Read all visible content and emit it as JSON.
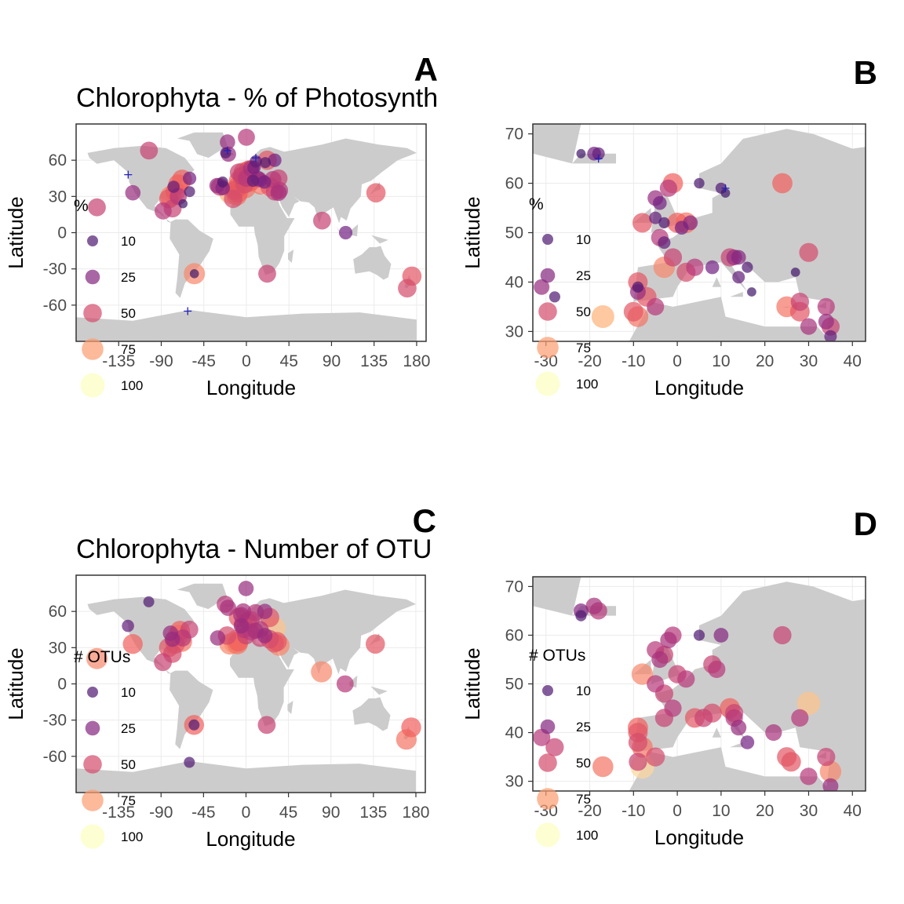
{
  "colors": {
    "land": "#cccccc",
    "panel_bg": "#ffffff",
    "grid": "#ebebeb",
    "border": "#333333",
    "site_marker": "#2020c0",
    "scale": [
      "#2c115f",
      "#721f81",
      "#b73779",
      "#f1605d",
      "#feb078",
      "#fcfdbf"
    ]
  },
  "legend_values": [
    "10",
    "25",
    "50",
    "75",
    "100"
  ],
  "chart_data": [
    {
      "panel": "A",
      "type": "scatter",
      "map": "world",
      "title": "Chlorophyta - % of Photosynth",
      "xlabel": "Longitude",
      "ylabel": "Latitude",
      "xlim": [
        -180,
        190
      ],
      "ylim": [
        -90,
        90
      ],
      "xticks": [
        "-135",
        "-90",
        "-45",
        "0",
        "45",
        "90",
        "135",
        "180"
      ],
      "yticks": [
        "60",
        "30",
        "0",
        "-30",
        "-60"
      ],
      "legend_title": "%",
      "points": [
        [
          -103,
          68,
          45
        ],
        [
          -88,
          18,
          40
        ],
        [
          -78,
          20,
          45
        ],
        [
          -68,
          44,
          60
        ],
        [
          -72,
          40,
          60
        ],
        [
          -75,
          34,
          60
        ],
        [
          -80,
          30,
          70
        ],
        [
          -72,
          30,
          40
        ],
        [
          -60,
          45,
          20
        ],
        [
          -77,
          38,
          15
        ],
        [
          -82,
          28,
          55
        ],
        [
          -67,
          24,
          5
        ],
        [
          -60,
          34,
          10
        ],
        [
          -158,
          21,
          45
        ],
        [
          -120,
          33,
          30
        ],
        [
          -55,
          -34,
          70
        ],
        [
          -55,
          -34,
          5
        ],
        [
          -22,
          66,
          10
        ],
        [
          -19,
          65,
          30
        ],
        [
          0,
          79,
          40
        ],
        [
          -20,
          75,
          30
        ],
        [
          10,
          59,
          15
        ],
        [
          22,
          60,
          55
        ],
        [
          2,
          51,
          60
        ],
        [
          -3,
          50,
          60
        ],
        [
          -8,
          43,
          60
        ],
        [
          -3,
          43,
          70
        ],
        [
          -9,
          38,
          60
        ],
        [
          -1,
          37,
          65
        ],
        [
          -9,
          33,
          60
        ],
        [
          -10,
          31,
          65
        ],
        [
          -17,
          33,
          80
        ],
        [
          -14,
          28,
          50
        ],
        [
          -12,
          35,
          55
        ],
        [
          -28,
          38,
          45
        ],
        [
          -31,
          39,
          30
        ],
        [
          -25,
          37,
          25
        ],
        [
          5,
          43,
          65
        ],
        [
          3,
          42,
          60
        ],
        [
          15,
          40,
          65
        ],
        [
          12,
          45,
          30
        ],
        [
          14,
          44,
          30
        ],
        [
          19,
          42,
          20
        ],
        [
          25,
          38,
          55
        ],
        [
          30,
          34,
          45
        ],
        [
          34,
          33,
          35
        ],
        [
          35,
          35,
          40
        ],
        [
          28,
          44,
          40
        ],
        [
          34,
          45,
          45
        ],
        [
          20,
          58,
          10
        ],
        [
          30,
          60,
          20
        ],
        [
          3,
          52,
          55
        ],
        [
          5,
          53,
          35
        ],
        [
          8,
          54,
          20
        ],
        [
          -5,
          47,
          45
        ],
        [
          -2,
          40,
          50
        ],
        [
          0,
          45,
          40
        ],
        [
          -8,
          50,
          45
        ],
        [
          7,
          43,
          15
        ],
        [
          -25,
          42,
          10
        ],
        [
          22,
          -34,
          45
        ],
        [
          80,
          10,
          45
        ],
        [
          105,
          0,
          20
        ],
        [
          137,
          33,
          55
        ],
        [
          175,
          -36,
          55
        ],
        [
          170,
          -46,
          50
        ]
      ],
      "crosses": [
        [
          -125,
          48
        ],
        [
          -62,
          -65
        ],
        [
          -20,
          68
        ],
        [
          10,
          62
        ]
      ]
    },
    {
      "panel": "B",
      "type": "scatter",
      "map": "europe",
      "title": "",
      "xlabel": "Longitude",
      "ylabel": "Latitude",
      "xlim": [
        -33,
        43
      ],
      "ylim": [
        28,
        72
      ],
      "xticks": [
        "-30",
        "-20",
        "-10",
        "0",
        "10",
        "20",
        "30",
        "40"
      ],
      "yticks": [
        "70",
        "60",
        "50",
        "40",
        "30"
      ],
      "legend_title": "%",
      "points": [
        [
          -22,
          66,
          5
        ],
        [
          -19,
          66,
          20
        ],
        [
          -18,
          66,
          15
        ],
        [
          -1,
          60,
          60
        ],
        [
          -2,
          59,
          40
        ],
        [
          -5,
          57,
          30
        ],
        [
          5,
          60,
          8
        ],
        [
          -4,
          56,
          20
        ],
        [
          -5,
          53,
          15
        ],
        [
          -3,
          52,
          10
        ],
        [
          -8,
          52,
          55
        ],
        [
          0,
          52,
          60
        ],
        [
          2,
          52,
          65
        ],
        [
          3,
          52,
          25
        ],
        [
          1,
          51,
          20
        ],
        [
          -4,
          49,
          40
        ],
        [
          -3,
          48,
          15
        ],
        [
          10,
          59,
          10
        ],
        [
          11,
          58,
          5
        ],
        [
          24,
          60,
          60
        ],
        [
          -1,
          45,
          45
        ],
        [
          -3,
          43,
          70
        ],
        [
          -9,
          40,
          55
        ],
        [
          -9,
          39,
          10
        ],
        [
          -9,
          38,
          30
        ],
        [
          -7,
          37,
          55
        ],
        [
          -10,
          34,
          55
        ],
        [
          -9,
          33,
          65
        ],
        [
          -17,
          33,
          80
        ],
        [
          -5,
          35,
          40
        ],
        [
          2,
          42,
          50
        ],
        [
          4,
          43,
          40
        ],
        [
          8,
          43,
          20
        ],
        [
          12,
          45,
          45
        ],
        [
          13,
          45,
          30
        ],
        [
          14,
          45,
          25
        ],
        [
          16,
          43,
          10
        ],
        [
          14,
          41,
          15
        ],
        [
          17,
          38,
          5
        ],
        [
          -31,
          39,
          30
        ],
        [
          -28,
          37,
          10
        ],
        [
          25,
          35,
          65
        ],
        [
          28,
          34,
          55
        ],
        [
          30,
          31,
          35
        ],
        [
          34,
          35,
          40
        ],
        [
          34,
          32,
          30
        ],
        [
          35,
          31,
          45
        ],
        [
          35,
          29,
          15
        ],
        [
          28,
          36,
          45
        ],
        [
          30,
          46,
          50
        ],
        [
          27,
          42,
          5
        ]
      ],
      "crosses": [
        [
          -18,
          65
        ],
        [
          11,
          59
        ]
      ]
    },
    {
      "panel": "C",
      "type": "scatter",
      "map": "world",
      "title": "Chlorophyta - Number of OTU",
      "xlabel": "Longitude",
      "ylabel": "Latitude",
      "xlim": [
        -180,
        190
      ],
      "ylim": [
        -90,
        90
      ],
      "xticks": [
        "-135",
        "-90",
        "-45",
        "0",
        "45",
        "90",
        "135",
        "180"
      ],
      "yticks": [
        "60",
        "30",
        "0",
        "-30",
        "-60"
      ],
      "legend_title": "# OTUs",
      "points": [
        [
          -103,
          68,
          10
        ],
        [
          -88,
          18,
          45
        ],
        [
          -78,
          25,
          50
        ],
        [
          -75,
          33,
          55
        ],
        [
          -72,
          40,
          70
        ],
        [
          -70,
          44,
          60
        ],
        [
          -68,
          35,
          65
        ],
        [
          -82,
          30,
          55
        ],
        [
          -78,
          37,
          30
        ],
        [
          -67,
          38,
          40
        ],
        [
          -60,
          45,
          45
        ],
        [
          -80,
          42,
          30
        ],
        [
          -158,
          21,
          70
        ],
        [
          -120,
          33,
          60
        ],
        [
          -125,
          48,
          15
        ],
        [
          -55,
          -34,
          60
        ],
        [
          -55,
          -34,
          10
        ],
        [
          -60,
          -65,
          10
        ],
        [
          -22,
          66,
          40
        ],
        [
          -19,
          63,
          35
        ],
        [
          0,
          79,
          30
        ],
        [
          -8,
          55,
          55
        ],
        [
          -3,
          60,
          35
        ],
        [
          2,
          52,
          45
        ],
        [
          -5,
          48,
          30
        ],
        [
          -10,
          36,
          70
        ],
        [
          -8,
          35,
          60
        ],
        [
          -9,
          33,
          65
        ],
        [
          -12,
          34,
          75
        ],
        [
          -17,
          33,
          70
        ],
        [
          0,
          40,
          45
        ],
        [
          5,
          43,
          40
        ],
        [
          10,
          44,
          35
        ],
        [
          15,
          38,
          45
        ],
        [
          20,
          40,
          30
        ],
        [
          25,
          37,
          50
        ],
        [
          30,
          34,
          55
        ],
        [
          33,
          35,
          55
        ],
        [
          35,
          32,
          70
        ],
        [
          30,
          46,
          85
        ],
        [
          25,
          55,
          55
        ],
        [
          10,
          59,
          40
        ],
        [
          20,
          60,
          30
        ],
        [
          5,
          53,
          45
        ],
        [
          -2,
          45,
          40
        ],
        [
          -5,
          57,
          35
        ],
        [
          -3,
          50,
          50
        ],
        [
          15,
          45,
          40
        ],
        [
          -20,
          40,
          50
        ],
        [
          -30,
          38,
          30
        ],
        [
          22,
          -34,
          45
        ],
        [
          80,
          10,
          70
        ],
        [
          105,
          0,
          40
        ],
        [
          137,
          33,
          55
        ],
        [
          175,
          -36,
          60
        ],
        [
          170,
          -46,
          65
        ]
      ],
      "crosses": []
    },
    {
      "panel": "D",
      "type": "scatter",
      "map": "europe",
      "title": "",
      "xlabel": "Longitude",
      "ylabel": "Latitude",
      "xlim": [
        -33,
        43
      ],
      "ylim": [
        28,
        72
      ],
      "xticks": [
        "-30",
        "-20",
        "-10",
        "0",
        "10",
        "20",
        "30",
        "40"
      ],
      "yticks": [
        "70",
        "60",
        "50",
        "40",
        "30"
      ],
      "legend_title": "# OTUs",
      "points": [
        [
          -22,
          65,
          25
        ],
        [
          -19,
          66,
          35
        ],
        [
          -18,
          65,
          40
        ],
        [
          -22,
          64,
          10
        ],
        [
          -1,
          60,
          40
        ],
        [
          -2,
          59,
          35
        ],
        [
          5,
          60,
          10
        ],
        [
          -5,
          57,
          40
        ],
        [
          -3,
          56,
          45
        ],
        [
          10,
          60,
          25
        ],
        [
          24,
          60,
          45
        ],
        [
          -4,
          55,
          35
        ],
        [
          0,
          52,
          45
        ],
        [
          2,
          51,
          40
        ],
        [
          -8,
          52,
          70
        ],
        [
          -5,
          50,
          40
        ],
        [
          -3,
          48,
          45
        ],
        [
          8,
          54,
          45
        ],
        [
          9,
          53,
          40
        ],
        [
          -1,
          45,
          40
        ],
        [
          -3,
          43,
          45
        ],
        [
          4,
          43,
          55
        ],
        [
          6,
          43,
          45
        ],
        [
          8,
          44,
          50
        ],
        [
          12,
          45,
          60
        ],
        [
          13,
          44,
          45
        ],
        [
          13,
          43,
          40
        ],
        [
          -9,
          41,
          60
        ],
        [
          -9,
          40,
          55
        ],
        [
          -9,
          38,
          50
        ],
        [
          -8,
          37,
          65
        ],
        [
          -9,
          34,
          45
        ],
        [
          -8,
          33,
          90
        ],
        [
          -17,
          33,
          65
        ],
        [
          -5,
          35,
          50
        ],
        [
          -31,
          39,
          40
        ],
        [
          -28,
          37,
          45
        ],
        [
          28,
          43,
          40
        ],
        [
          30,
          46,
          85
        ],
        [
          25,
          35,
          55
        ],
        [
          26,
          34,
          55
        ],
        [
          30,
          31,
          40
        ],
        [
          34,
          35,
          45
        ],
        [
          35,
          32,
          70
        ],
        [
          35,
          29,
          30
        ],
        [
          14,
          41,
          30
        ],
        [
          16,
          38,
          20
        ],
        [
          22,
          40,
          35
        ]
      ],
      "crosses": []
    }
  ]
}
